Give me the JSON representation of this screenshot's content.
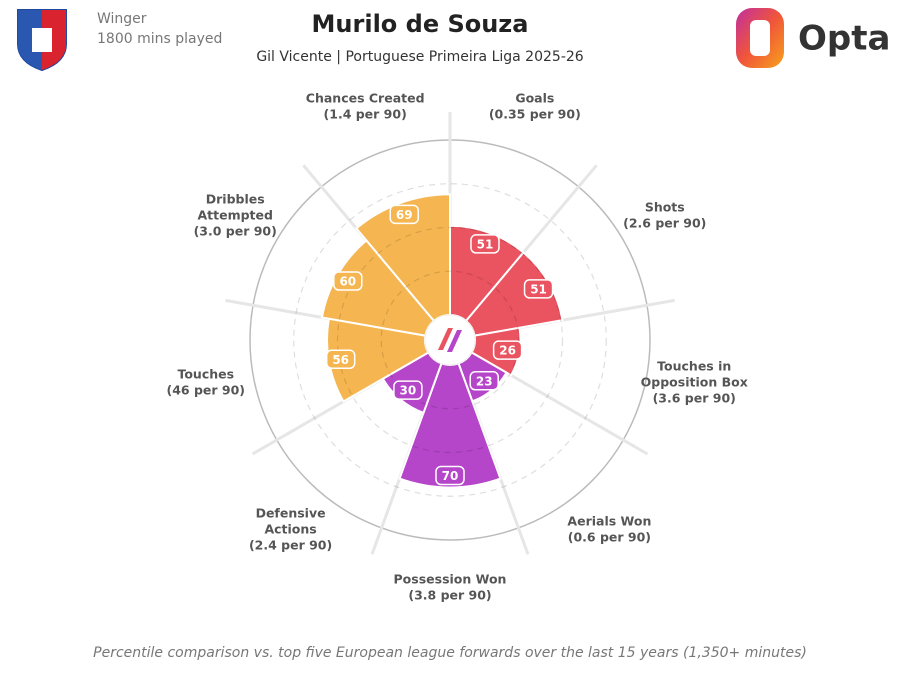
{
  "header": {
    "position": "Winger",
    "minutes": "1800 mins played",
    "brand": "Opta"
  },
  "chart_data": {
    "type": "pizza",
    "title": "Murilo de Souza",
    "subtitle": "Gil Vicente | Portuguese Primeira Liga 2025-26",
    "note": "Percentile comparison vs. top five European league forwards over the last 15 years (1,350+ minutes)",
    "categories": [
      [
        "Goals"
      ],
      [
        "Shots"
      ],
      [
        "Touches in",
        "Opposition Box"
      ],
      [
        "Aerials Won"
      ],
      [
        "Possession Won"
      ],
      [
        "Defensive",
        "Actions"
      ],
      [
        "Touches"
      ],
      [
        "Dribbles",
        "Attempted"
      ],
      [
        "Chances Created"
      ]
    ],
    "per90_labels": [
      "(0.35 per 90)",
      "(2.6 per 90)",
      "(3.6 per 90)",
      "(0.6 per 90)",
      "(3.8 per 90)",
      "(2.4 per 90)",
      "(46 per 90)",
      "(3.0 per 90)",
      "(1.4 per 90)"
    ],
    "values": [
      51,
      51,
      26,
      23,
      70,
      30,
      56,
      60,
      69
    ],
    "colors": [
      "#ea5360",
      "#ea5360",
      "#ea5360",
      "#b545c9",
      "#b545c9",
      "#b545c9",
      "#f5b651",
      "#f5b651",
      "#f5b651"
    ],
    "rlim": [
      0,
      100
    ],
    "rticks": [
      25,
      50,
      75
    ]
  }
}
